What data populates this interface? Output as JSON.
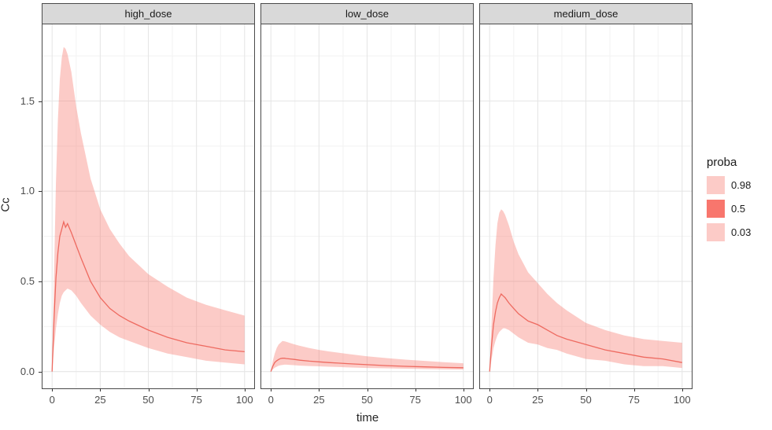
{
  "figure": {
    "ylabel": "Cc",
    "xlabel": "time",
    "legend": {
      "title": "proba",
      "position": "right",
      "entries": [
        {
          "label": "0.98",
          "fill": "#F8766D",
          "opacity": 0.38
        },
        {
          "label": "0.5",
          "fill": "#F8766D",
          "opacity": 1
        },
        {
          "label": "0.03",
          "fill": "#F8766D",
          "opacity": 0.38
        }
      ]
    }
  },
  "style": {
    "band_fill": "#F8766D",
    "band_opacity": 0.38,
    "line_color": "#EE6A60",
    "grid_major": "#E6E6E6",
    "grid_minor": "#F2F2F2",
    "panel_border": "#4A4A4A",
    "strip_background": "#D9D9D9",
    "axis_text": "#4D4D4D",
    "tick_color": "#333333"
  },
  "chart_data": {
    "type": "area",
    "title": "",
    "xlabel": "time",
    "ylabel": "Cc",
    "grid": true,
    "xlim": [
      -5,
      105
    ],
    "ylim": [
      -0.093,
      1.925
    ],
    "x_ticks": [
      0,
      25,
      50,
      75,
      100
    ],
    "x_tick_labels": [
      "0",
      "25",
      "50",
      "75",
      "100"
    ],
    "x_minor_ticks": [
      12.5,
      37.5,
      62.5,
      87.5
    ],
    "y_ticks": [
      0,
      0.5,
      1.0,
      1.5
    ],
    "y_tick_labels": [
      "0.0",
      "0.5",
      "1.0",
      "1.5"
    ],
    "y_minor_ticks": [
      0.25,
      0.75,
      1.25,
      1.75
    ],
    "legend": {
      "title": "proba",
      "entries": [
        "0.98",
        "0.5",
        "0.03"
      ]
    },
    "x": [
      0,
      1,
      2,
      3,
      4,
      5,
      6,
      7,
      8,
      10,
      12.5,
      15,
      20,
      25,
      30,
      35,
      40,
      50,
      60,
      70,
      80,
      90,
      100
    ],
    "facets": [
      {
        "label": "high_dose",
        "series": [
          {
            "name": "quantile_0.98_upper",
            "values": [
              0,
              0.55,
              1.05,
              1.4,
              1.62,
              1.74,
              1.8,
              1.79,
              1.76,
              1.66,
              1.47,
              1.32,
              1.07,
              0.9,
              0.79,
              0.71,
              0.64,
              0.54,
              0.47,
              0.41,
              0.37,
              0.34,
              0.31
            ]
          },
          {
            "name": "median_0.5",
            "values": [
              0,
              0.3,
              0.52,
              0.66,
              0.75,
              0.79,
              0.83,
              0.8,
              0.82,
              0.77,
              0.7,
              0.63,
              0.5,
              0.41,
              0.35,
              0.31,
              0.28,
              0.23,
              0.19,
              0.16,
              0.14,
              0.12,
              0.11
            ]
          },
          {
            "name": "quantile_0.03_lower",
            "values": [
              0,
              0.13,
              0.24,
              0.32,
              0.38,
              0.42,
              0.44,
              0.45,
              0.46,
              0.45,
              0.42,
              0.38,
              0.31,
              0.26,
              0.22,
              0.19,
              0.17,
              0.13,
              0.1,
              0.08,
              0.06,
              0.05,
              0.04
            ]
          }
        ]
      },
      {
        "label": "low_dose",
        "series": [
          {
            "name": "quantile_0.98_upper",
            "values": [
              0,
              0.06,
              0.1,
              0.13,
              0.15,
              0.16,
              0.17,
              0.168,
              0.165,
              0.158,
              0.15,
              0.143,
              0.13,
              0.12,
              0.112,
              0.105,
              0.098,
              0.085,
              0.075,
              0.066,
              0.059,
              0.052,
              0.046
            ]
          },
          {
            "name": "median_0.5",
            "values": [
              0,
              0.03,
              0.05,
              0.06,
              0.067,
              0.072,
              0.074,
              0.074,
              0.072,
              0.07,
              0.067,
              0.063,
              0.058,
              0.054,
              0.05,
              0.047,
              0.044,
              0.038,
              0.033,
              0.029,
              0.026,
              0.023,
              0.021
            ]
          },
          {
            "name": "quantile_0.03_lower",
            "values": [
              0,
              0.012,
              0.021,
              0.027,
              0.032,
              0.035,
              0.037,
              0.038,
              0.038,
              0.037,
              0.035,
              0.033,
              0.031,
              0.029,
              0.027,
              0.025,
              0.023,
              0.02,
              0.018,
              0.016,
              0.014,
              0.012,
              0.011
            ]
          }
        ]
      },
      {
        "label": "medium_dose",
        "series": [
          {
            "name": "quantile_0.98_upper",
            "values": [
              0,
              0.28,
              0.52,
              0.7,
              0.82,
              0.88,
              0.9,
              0.89,
              0.87,
              0.81,
              0.72,
              0.65,
              0.55,
              0.49,
              0.43,
              0.38,
              0.34,
              0.27,
              0.23,
              0.2,
              0.18,
              0.17,
              0.16
            ]
          },
          {
            "name": "median_0.5",
            "values": [
              0,
              0.15,
              0.26,
              0.33,
              0.38,
              0.41,
              0.43,
              0.42,
              0.41,
              0.38,
              0.35,
              0.32,
              0.28,
              0.26,
              0.23,
              0.2,
              0.18,
              0.15,
              0.12,
              0.1,
              0.08,
              0.07,
              0.05
            ]
          },
          {
            "name": "quantile_0.03_lower",
            "values": [
              0,
              0.07,
              0.13,
              0.17,
              0.2,
              0.22,
              0.23,
              0.24,
              0.24,
              0.23,
              0.21,
              0.19,
              0.16,
              0.15,
              0.13,
              0.12,
              0.1,
              0.07,
              0.06,
              0.04,
              0.03,
              0.03,
              0.02
            ]
          }
        ]
      }
    ]
  }
}
